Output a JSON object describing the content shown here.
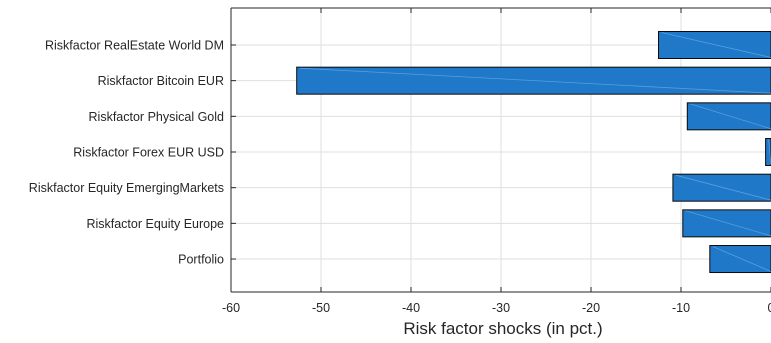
{
  "chart_data": {
    "type": "bar",
    "orientation": "horizontal",
    "title": "",
    "xlabel": "Risk factor shocks (in pct.)",
    "ylabel": "",
    "categories": [
      "Riskfactor RealEstate World DM",
      "Riskfactor Bitcoin EUR",
      "Riskfactor Physical Gold",
      "Riskfactor Forex EUR USD",
      "Riskfactor Equity EmergingMarkets",
      "Riskfactor Equity Europe",
      "Portfolio"
    ],
    "values": [
      -12.5,
      -52.7,
      -9.3,
      -0.6,
      -10.9,
      -9.8,
      -6.8
    ],
    "xlim": [
      -60,
      0
    ],
    "xticks": [
      -60,
      -50,
      -40,
      -30,
      -20,
      -10,
      0
    ],
    "xtick_labels": [
      "-60",
      "-50",
      "-40",
      "-30",
      "-20",
      "-10",
      "0"
    ],
    "grid": true,
    "legend": "none",
    "bar_color": "#1f78c8",
    "bar_edge_color": "#0a0a0a",
    "grid_color": "#dfdfdf",
    "axis_color": "#262626"
  }
}
